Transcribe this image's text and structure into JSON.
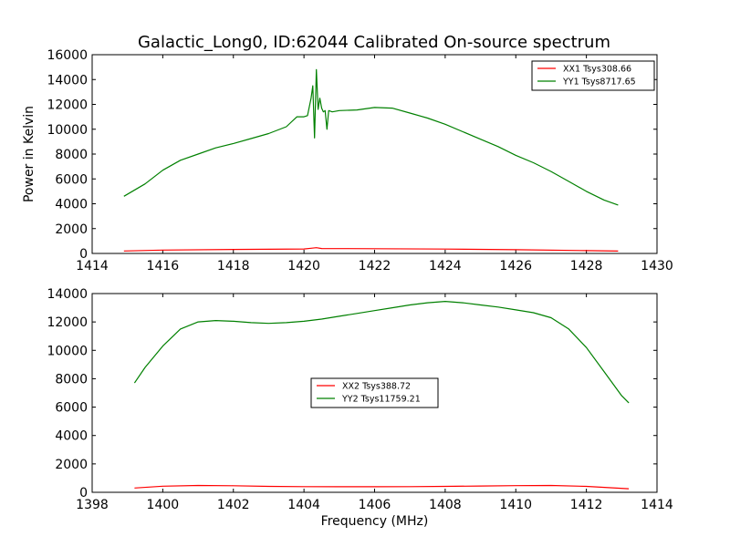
{
  "figure": {
    "title": "Galactic_Long0, ID:62044 Calibrated On-source spectrum",
    "colors": {
      "xx": "#ff0000",
      "yy": "#008000",
      "axis": "#000000",
      "background": "#ffffff"
    }
  },
  "chart_data": [
    {
      "type": "line",
      "title": "Galactic_Long0, ID:62044 Calibrated On-source spectrum",
      "xlabel": "",
      "ylabel": "Power in Kelvin",
      "xlim": [
        1414,
        1430
      ],
      "ylim": [
        0,
        16000
      ],
      "xticks": [
        1414,
        1416,
        1418,
        1420,
        1422,
        1424,
        1426,
        1428,
        1430
      ],
      "yticks": [
        0,
        2000,
        4000,
        6000,
        8000,
        10000,
        12000,
        14000,
        16000
      ],
      "grid": false,
      "legend_position": "top-right",
      "series": [
        {
          "name": "XX1 Tsys308.66",
          "color": "#ff0000",
          "x": [
            1414.9,
            1416,
            1418,
            1420,
            1420.2,
            1420.35,
            1420.5,
            1422,
            1424,
            1426,
            1428,
            1428.9
          ],
          "y": [
            200,
            270,
            320,
            360,
            420,
            460,
            400,
            380,
            350,
            300,
            230,
            190
          ]
        },
        {
          "name": "YY1 Tsys8717.65",
          "color": "#008000",
          "x": [
            1414.9,
            1415.5,
            1416,
            1416.5,
            1417,
            1417.5,
            1418,
            1418.5,
            1419,
            1419.5,
            1419.8,
            1420.0,
            1420.1,
            1420.2,
            1420.25,
            1420.3,
            1420.35,
            1420.4,
            1420.45,
            1420.5,
            1420.55,
            1420.6,
            1420.65,
            1420.7,
            1420.8,
            1421,
            1421.5,
            1422,
            1422.5,
            1423,
            1423.5,
            1424,
            1424.5,
            1425,
            1425.5,
            1426,
            1426.5,
            1427,
            1427.5,
            1428,
            1428.5,
            1428.9
          ],
          "y": [
            4600,
            5600,
            6700,
            7500,
            8000,
            8500,
            8850,
            9250,
            9650,
            10200,
            11000,
            11000,
            11100,
            12500,
            13500,
            9300,
            14800,
            11600,
            12500,
            11700,
            11400,
            11500,
            10000,
            11500,
            11400,
            11500,
            11550,
            11750,
            11700,
            11300,
            10900,
            10400,
            9800,
            9200,
            8600,
            7900,
            7300,
            6600,
            5800,
            5000,
            4300,
            3900
          ]
        }
      ]
    },
    {
      "type": "line",
      "title": "",
      "xlabel": "Frequency (MHz)",
      "ylabel": "",
      "xlim": [
        1398,
        1414
      ],
      "ylim": [
        0,
        14000
      ],
      "xticks": [
        1398,
        1400,
        1402,
        1404,
        1406,
        1408,
        1410,
        1412,
        1414
      ],
      "yticks": [
        0,
        2000,
        4000,
        6000,
        8000,
        10000,
        12000,
        14000
      ],
      "grid": false,
      "legend_position": "center",
      "series": [
        {
          "name": "XX2 Tsys388.72",
          "color": "#ff0000",
          "x": [
            1399.2,
            1400,
            1401,
            1402,
            1403,
            1404,
            1405,
            1406,
            1407,
            1408,
            1409,
            1410,
            1411,
            1412,
            1413.2
          ],
          "y": [
            300,
            430,
            480,
            460,
            420,
            400,
            390,
            390,
            400,
            420,
            440,
            470,
            480,
            420,
            250
          ]
        },
        {
          "name": "YY2 Tsys11759.21",
          "color": "#008000",
          "x": [
            1399.2,
            1399.5,
            1400,
            1400.5,
            1401,
            1401.5,
            1402,
            1402.5,
            1403,
            1403.5,
            1404,
            1404.5,
            1405,
            1405.5,
            1406,
            1406.5,
            1407,
            1407.5,
            1408,
            1408.5,
            1409,
            1409.5,
            1410,
            1410.5,
            1411,
            1411.5,
            1412,
            1412.5,
            1413,
            1413.2
          ],
          "y": [
            7700,
            8800,
            10300,
            11500,
            12000,
            12100,
            12050,
            11950,
            11900,
            11950,
            12050,
            12200,
            12400,
            12600,
            12800,
            13000,
            13200,
            13350,
            13450,
            13350,
            13200,
            13050,
            12850,
            12650,
            12300,
            11500,
            10200,
            8500,
            6800,
            6300
          ]
        }
      ]
    }
  ]
}
